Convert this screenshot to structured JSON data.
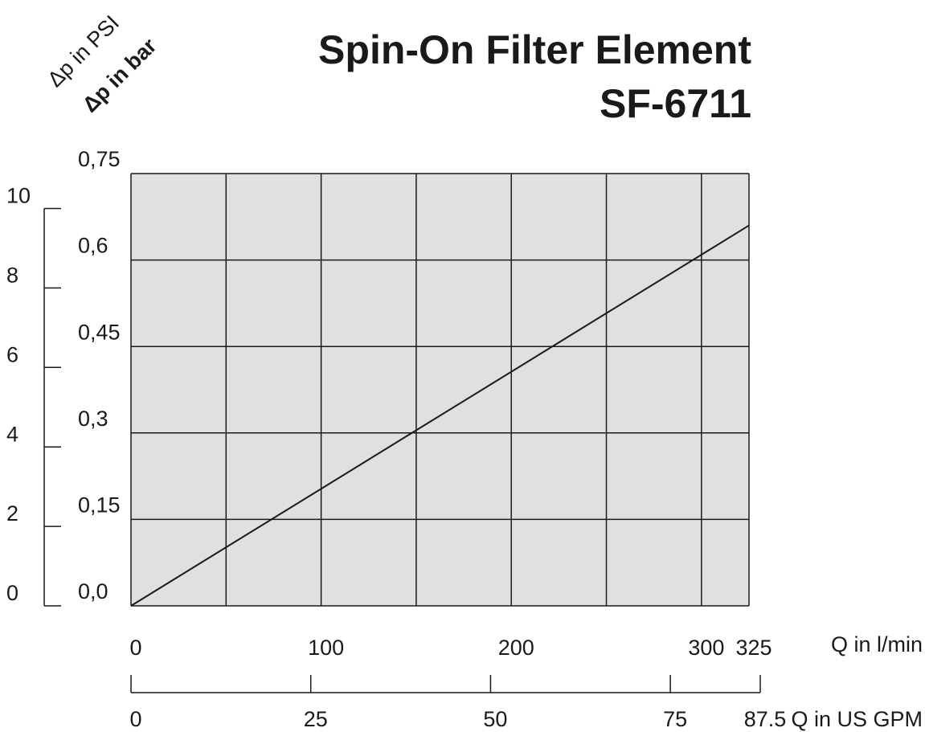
{
  "chart_data": {
    "type": "line",
    "title": "Spin-On Filter Element",
    "subtitle": "SF-6711",
    "y_label": "Δp in bar",
    "y2_label": "Δp in PSI",
    "x_label": "Q in l/min",
    "x2_label": "Q in US GPM",
    "x": [
      0,
      325
    ],
    "values": [
      0,
      0.66
    ],
    "color": "#1a1a1a",
    "xlim": [
      0,
      325
    ],
    "xticks": [
      0,
      100,
      200,
      300,
      325
    ],
    "x_gridlines": [
      0,
      50,
      100,
      150,
      200,
      250,
      300,
      325
    ],
    "ylim": [
      0,
      0.75
    ],
    "yticks": [
      {
        "value": 0,
        "label": "0,0"
      },
      {
        "value": 0.15,
        "label": "0,15"
      },
      {
        "value": 0.3,
        "label": "0,3"
      },
      {
        "value": 0.45,
        "label": "0,45"
      },
      {
        "value": 0.6,
        "label": "0,6"
      },
      {
        "value": 0.75,
        "label": "0,75"
      }
    ],
    "y2lim": [
      0,
      10.88
    ],
    "y2ticks": [
      0,
      2,
      4,
      6,
      8,
      10
    ],
    "x2lim": [
      0,
      87.5
    ],
    "x2ticks": [
      0,
      25,
      50,
      75,
      87.5
    ],
    "grid": true,
    "plot_background": "#e0e0e2",
    "title_color": "#008060"
  }
}
